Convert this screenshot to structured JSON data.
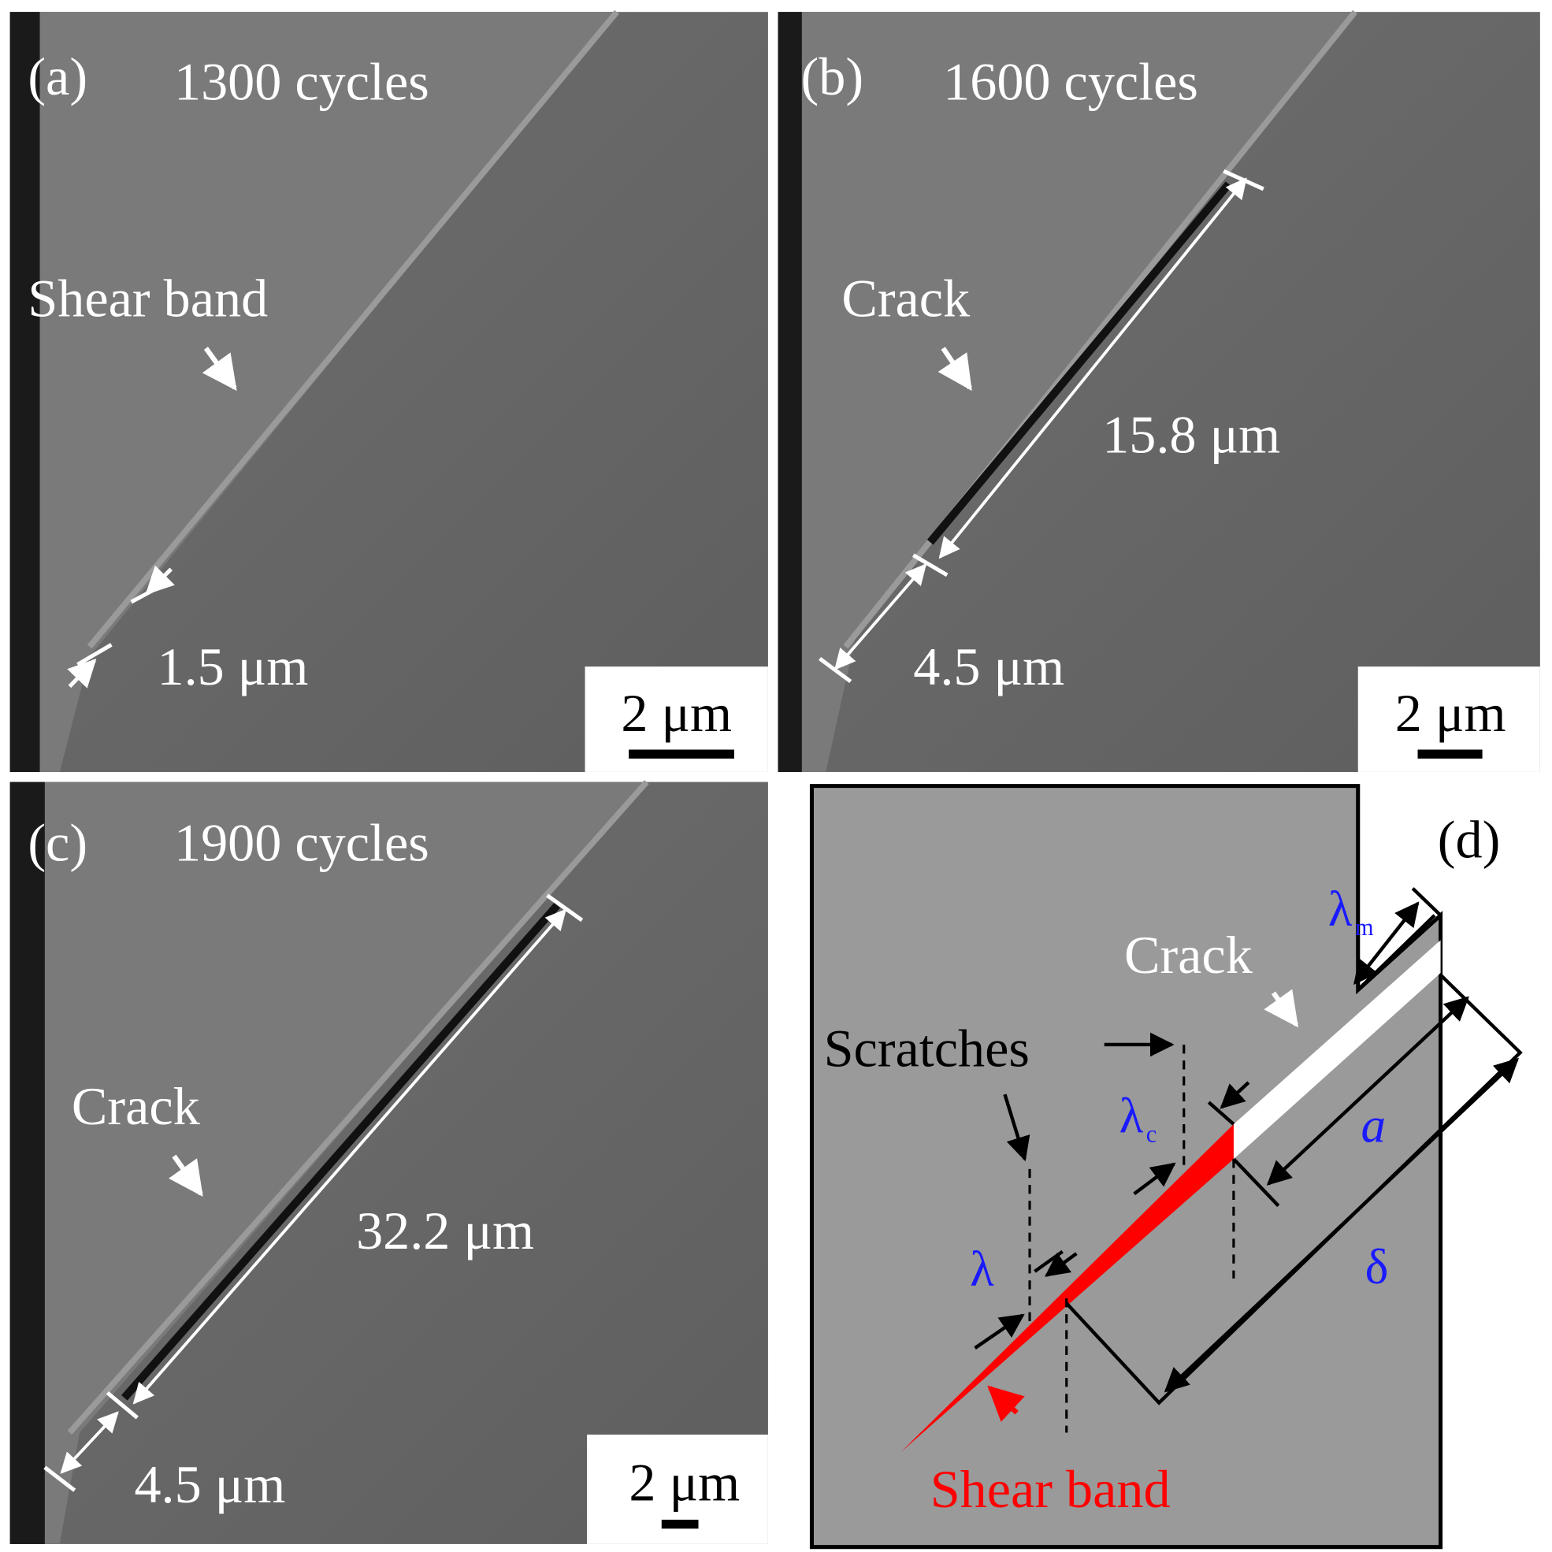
{
  "panels": [
    {
      "label": "(a)",
      "title": "1300 cycles",
      "feature": "Shear band",
      "width": "1.5 μm",
      "scale": "2 μm"
    },
    {
      "label": "(b)",
      "title": "1600 cycles",
      "feature": "Crack",
      "length": "15.8 μm",
      "width": "4.5 μm",
      "scale": "2 μm"
    },
    {
      "label": "(c)",
      "title": "1900 cycles",
      "feature": "Crack",
      "length": "32.2 μm",
      "width": "4.5 μm",
      "scale": "2 μm"
    }
  ],
  "schematic": {
    "label": "(d)",
    "crack": "Crack",
    "scratches": "Scratches",
    "shear_band": "Shear band",
    "lambda": "λ",
    "lambda_c": {
      "symbol": "λ",
      "subscript": "c"
    },
    "lambda_m": {
      "symbol": "λ",
      "subscript": "m"
    },
    "a": "a",
    "delta": "δ"
  }
}
